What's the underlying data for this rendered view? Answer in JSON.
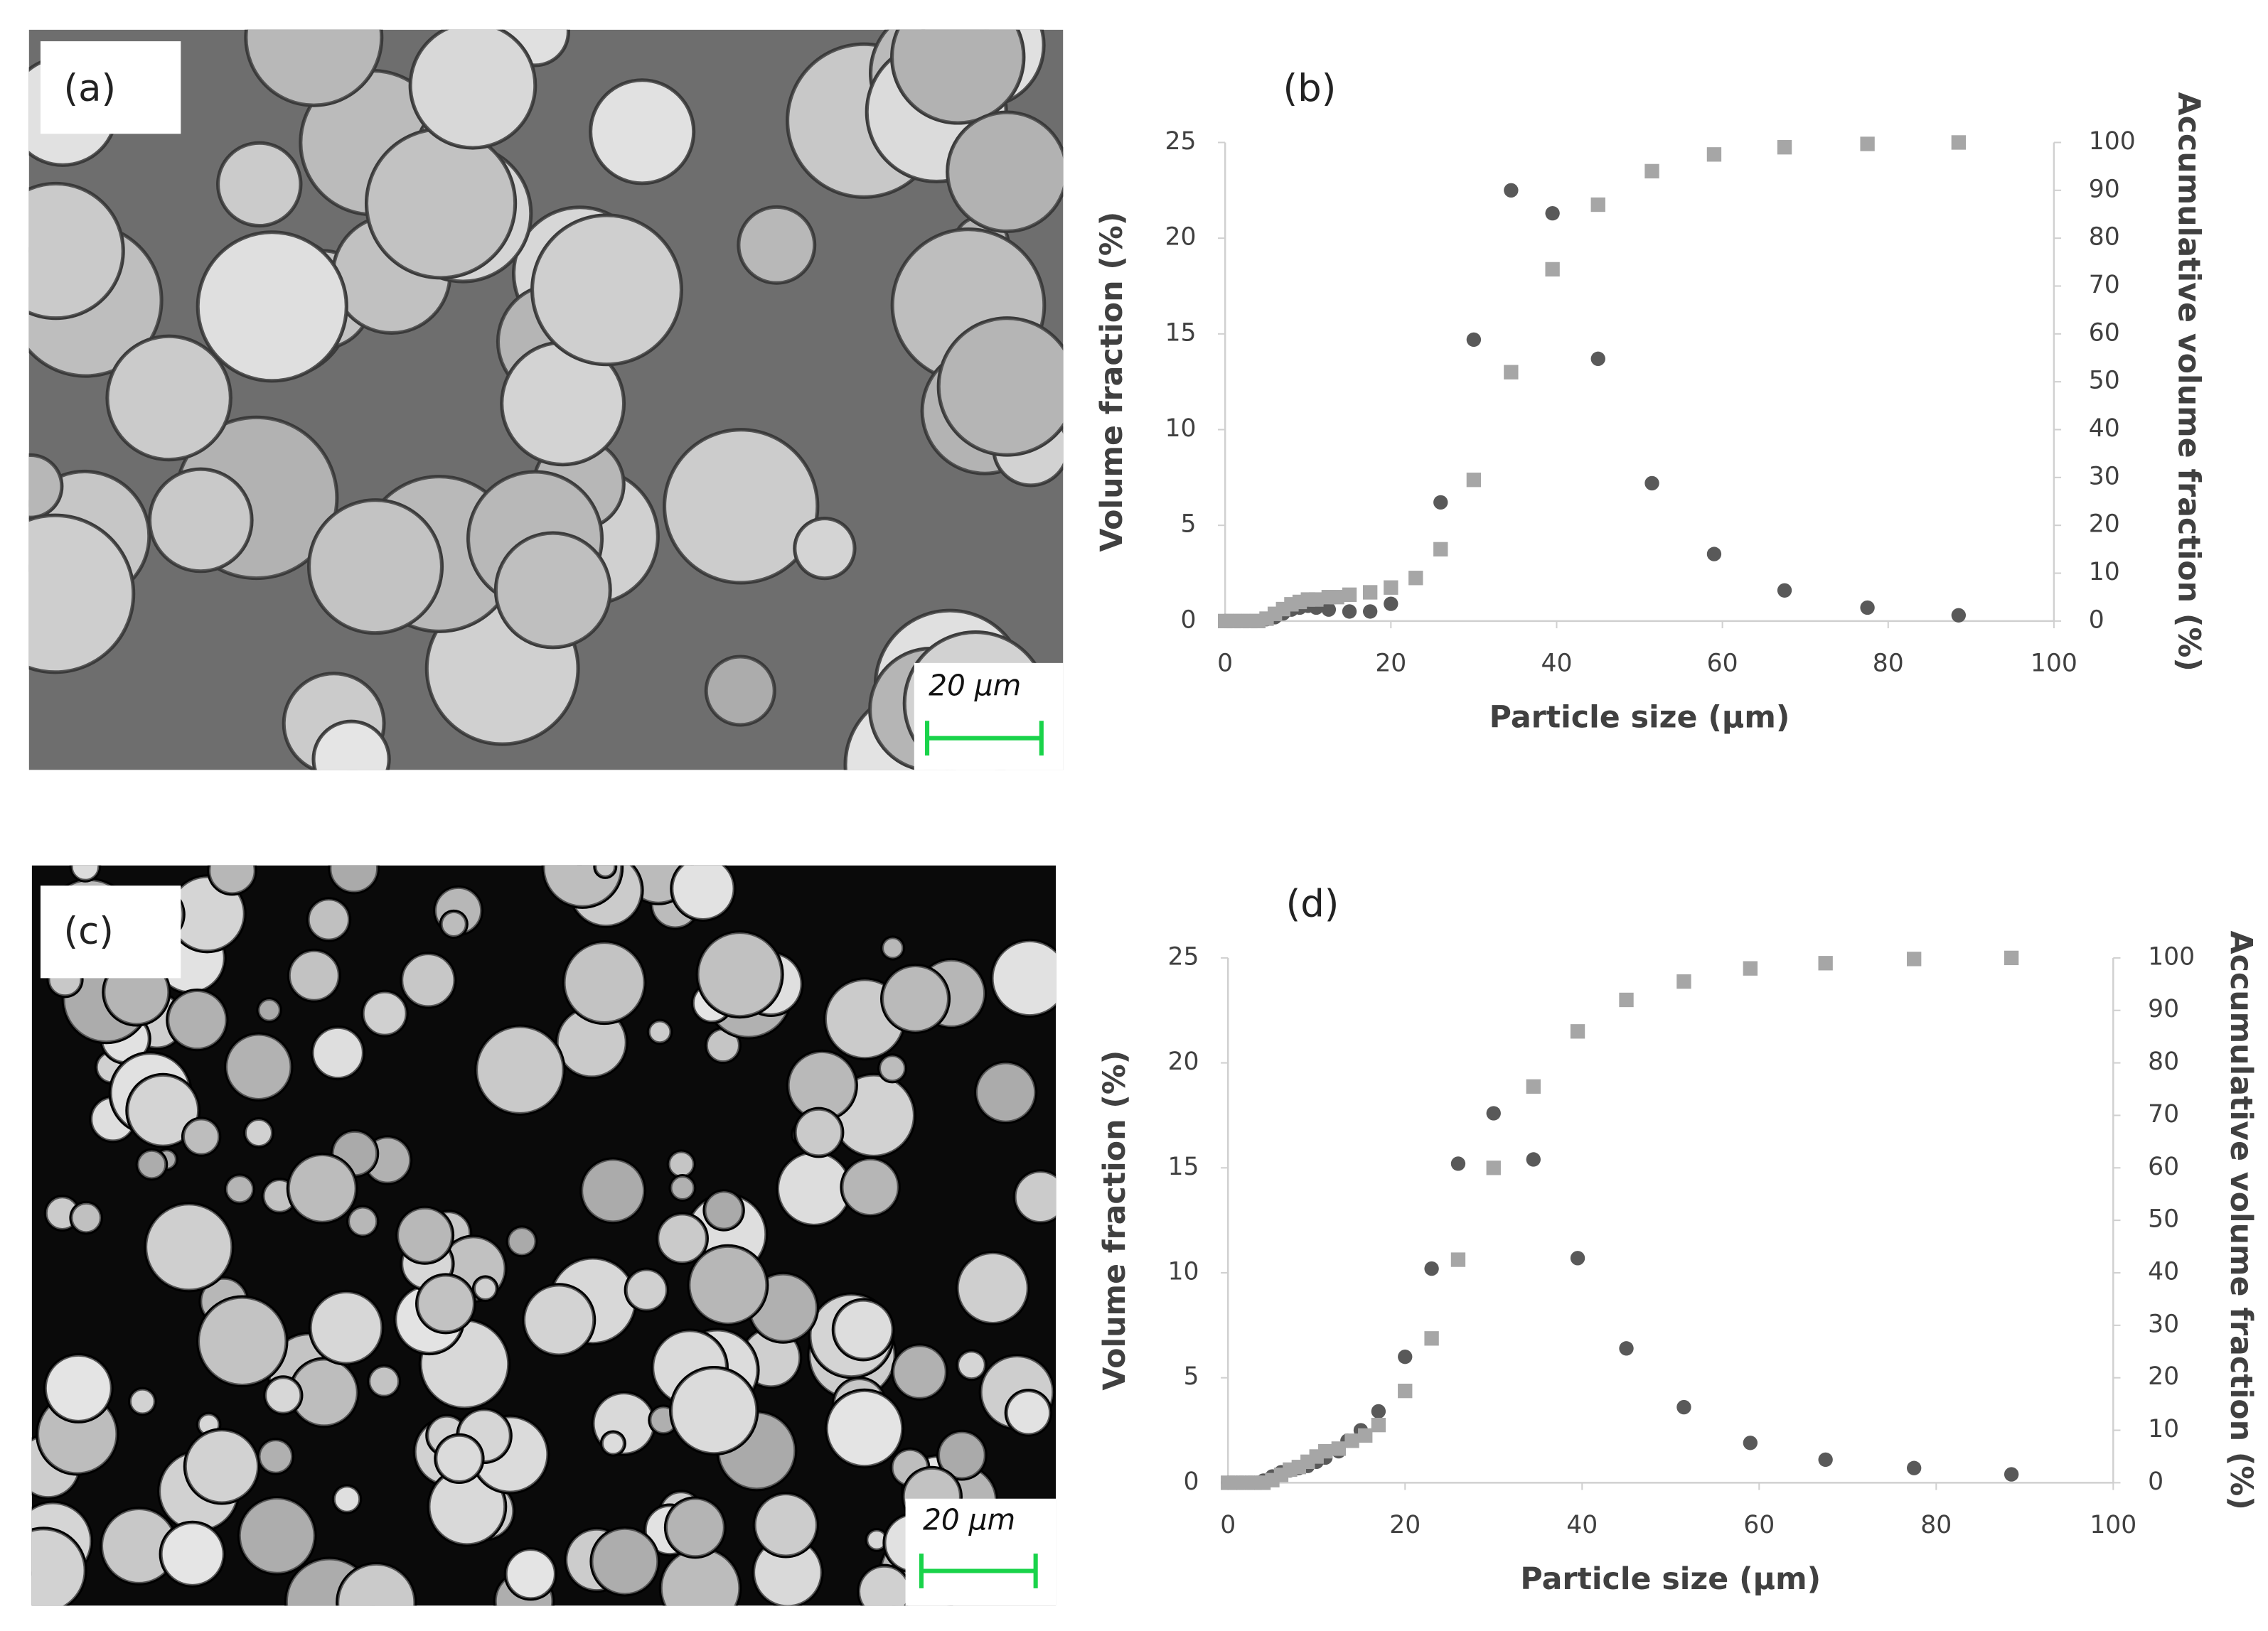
{
  "panels": [
    {
      "label": "(a)",
      "scale_bar": "20 µm"
    },
    {
      "label": "(c)",
      "scale_bar": "20 µm"
    }
  ],
  "chart_data": [
    {
      "type": "scatter",
      "title": "(b)",
      "xlabel": "Particle size (µm)",
      "ylabel": "Volume fraction (%)",
      "y2label": "Accumulative volume fraction (%)",
      "xlim": [
        0,
        100
      ],
      "xticks": [
        0,
        20,
        40,
        60,
        80,
        100
      ],
      "ylim": [
        0,
        25
      ],
      "yticks": [
        0,
        5,
        10,
        15,
        20,
        25
      ],
      "y2lim": [
        0,
        100
      ],
      "y2ticks": [
        0,
        10,
        20,
        30,
        40,
        50,
        60,
        70,
        80,
        90,
        100
      ],
      "series": [
        {
          "marker": "circle",
          "color": "#595959",
          "x": [
            0,
            1,
            2,
            3,
            4,
            5,
            6,
            7,
            8,
            9,
            10,
            11,
            12.5,
            15,
            17.5,
            20,
            26,
            30,
            34.5,
            39.5,
            45,
            51.5,
            59,
            67.5,
            77.5,
            88.5
          ],
          "values": [
            0,
            0,
            0,
            0,
            0,
            0.1,
            0.2,
            0.4,
            0.6,
            0.7,
            0.8,
            0.7,
            0.6,
            0.5,
            0.5,
            0.9,
            6.2,
            14.7,
            22.5,
            21.3,
            13.7,
            7.2,
            3.5,
            1.6,
            0.7,
            0.3
          ]
        },
        {
          "marker": "square",
          "axis": "y2",
          "color": "#a6a6a6",
          "x": [
            0,
            1,
            2,
            3,
            4,
            5,
            6,
            7,
            8,
            9,
            10,
            11,
            12.5,
            13.5,
            15,
            17.5,
            20,
            23,
            26,
            30,
            34.5,
            39.5,
            45,
            51.5,
            59,
            67.5,
            77.5,
            88.5
          ],
          "values": [
            0,
            0,
            0,
            0,
            0,
            0.5,
            1.5,
            2.5,
            3.5,
            4,
            4.5,
            4.5,
            5,
            5,
            5.5,
            6,
            7,
            9,
            15,
            29.5,
            52,
            73.5,
            87,
            94,
            97.5,
            99,
            99.7,
            100
          ]
        }
      ]
    },
    {
      "type": "scatter",
      "title": "(d)",
      "xlabel": "Particle size (µm)",
      "ylabel": "Volume fraction (%)",
      "y2label": "Accumulative volume fraction (%)",
      "xlim": [
        0,
        100
      ],
      "xticks": [
        0,
        20,
        40,
        60,
        80,
        100
      ],
      "ylim": [
        0,
        25
      ],
      "yticks": [
        0,
        5,
        10,
        15,
        20,
        25
      ],
      "y2lim": [
        0,
        100
      ],
      "y2ticks": [
        0,
        10,
        20,
        30,
        40,
        50,
        60,
        70,
        80,
        90,
        100
      ],
      "series": [
        {
          "marker": "circle",
          "color": "#595959",
          "x": [
            0,
            1,
            2,
            3,
            4,
            5,
            6,
            7,
            8,
            9,
            10,
            11,
            12.5,
            13.5,
            15,
            17,
            20,
            23,
            26,
            30,
            34.5,
            39.5,
            45,
            51.5,
            59,
            67.5,
            77.5,
            88.5
          ],
          "values": [
            0,
            0,
            0,
            0,
            0.1,
            0.3,
            0.5,
            0.6,
            0.7,
            0.8,
            1,
            1.2,
            1.5,
            2,
            2.5,
            3.4,
            6,
            10.2,
            15.2,
            17.6,
            15.4,
            10.7,
            6.4,
            3.6,
            1.9,
            1.1,
            0.7,
            0.4
          ]
        },
        {
          "marker": "square",
          "axis": "y2",
          "color": "#a6a6a6",
          "x": [
            0,
            1,
            2,
            3,
            4,
            5,
            6,
            7,
            8,
            9,
            10,
            11,
            12.5,
            14,
            15.5,
            17,
            20,
            23,
            26,
            30,
            34.5,
            39.5,
            45,
            51.5,
            59,
            67.5,
            77.5,
            88.5
          ],
          "values": [
            0,
            0,
            0,
            0,
            0,
            0.5,
            1.5,
            2.5,
            3,
            4,
            5,
            6,
            6.5,
            8,
            9,
            11,
            17.5,
            27.5,
            42.5,
            60,
            75.5,
            86,
            92,
            95.5,
            98,
            99,
            99.8,
            100
          ]
        }
      ]
    }
  ]
}
